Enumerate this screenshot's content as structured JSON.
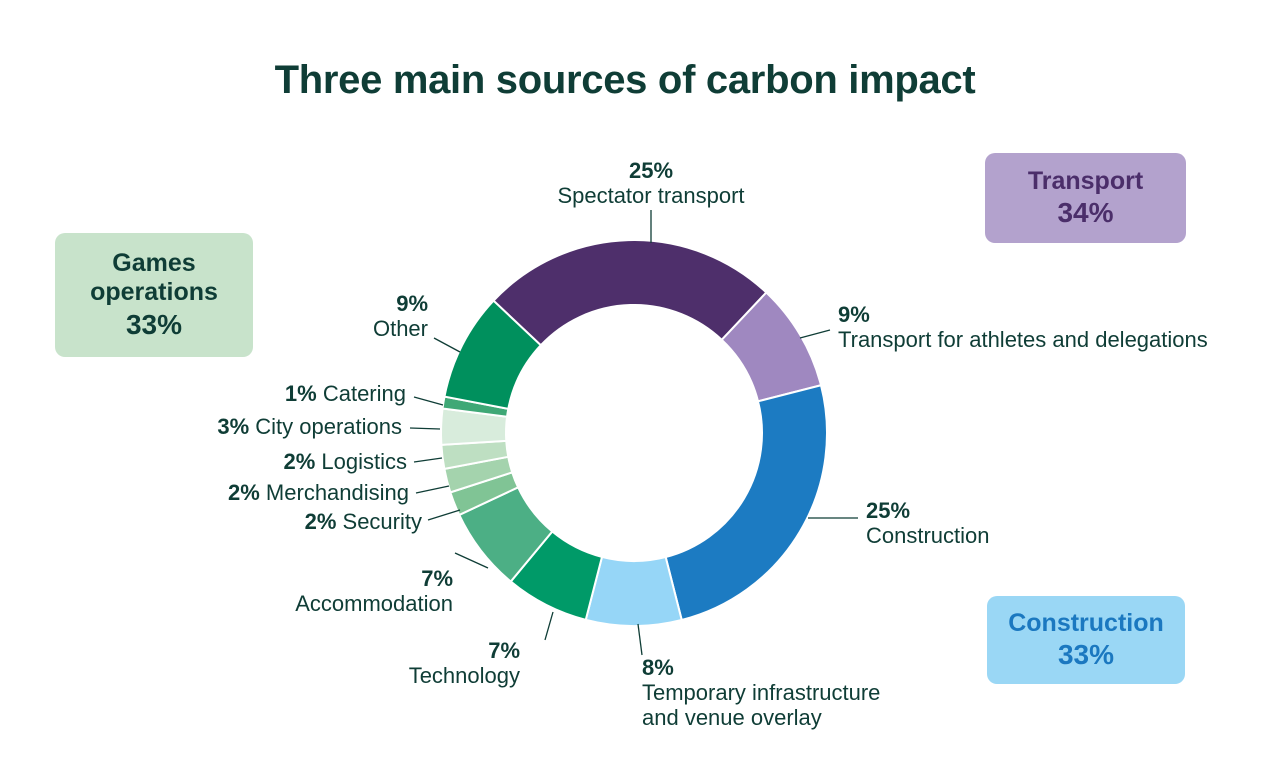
{
  "title": "Three main sources of carbon impact",
  "groups": [
    {
      "id": "games",
      "name": "Games operations",
      "name_lines": [
        "Games",
        "operations"
      ],
      "pct": "33%",
      "bg": "#c8e3cb",
      "fg": "#0f3d36"
    },
    {
      "id": "transport",
      "name": "Transport",
      "name_lines": [
        "Transport"
      ],
      "pct": "34%",
      "bg": "#b3a2cd",
      "fg": "#4b2e6a"
    },
    {
      "id": "construction",
      "name": "Construction",
      "name_lines": [
        "Construction"
      ],
      "pct": "33%",
      "bg": "#9ad7f5",
      "fg": "#1b78c0"
    }
  ],
  "chart_data": {
    "type": "pie",
    "title": "Three main sources of carbon impact",
    "donut": true,
    "unit": "%",
    "slices": [
      {
        "label": "Spectator transport",
        "value": 25,
        "color": "#4e2f6b",
        "group": "Transport"
      },
      {
        "label": "Transport for athletes and delegations",
        "value": 9,
        "color": "#9f88c0",
        "group": "Transport"
      },
      {
        "label": "Construction",
        "value": 25,
        "color": "#1c7bc2",
        "group": "Construction"
      },
      {
        "label": "Temporary infrastructure and venue overlay",
        "value": 8,
        "color": "#96d6f7",
        "group": "Construction"
      },
      {
        "label": "Technology",
        "value": 7,
        "color": "#009a68",
        "group": "Games operations"
      },
      {
        "label": "Accommodation",
        "value": 7,
        "color": "#4caf85",
        "group": "Games operations"
      },
      {
        "label": "Security",
        "value": 2,
        "color": "#80c495",
        "group": "Games operations"
      },
      {
        "label": "Merchandising",
        "value": 2,
        "color": "#a4d3ad",
        "group": "Games operations"
      },
      {
        "label": "Logistics",
        "value": 2,
        "color": "#bedfc2",
        "group": "Games operations"
      },
      {
        "label": "City operations",
        "value": 3,
        "color": "#d8ecdc",
        "group": "Games operations"
      },
      {
        "label": "Catering",
        "value": 1,
        "color": "#3fa876",
        "group": "Games operations"
      },
      {
        "label": "Other",
        "value": 9,
        "color": "#00905d",
        "group": "Games operations"
      }
    ]
  }
}
